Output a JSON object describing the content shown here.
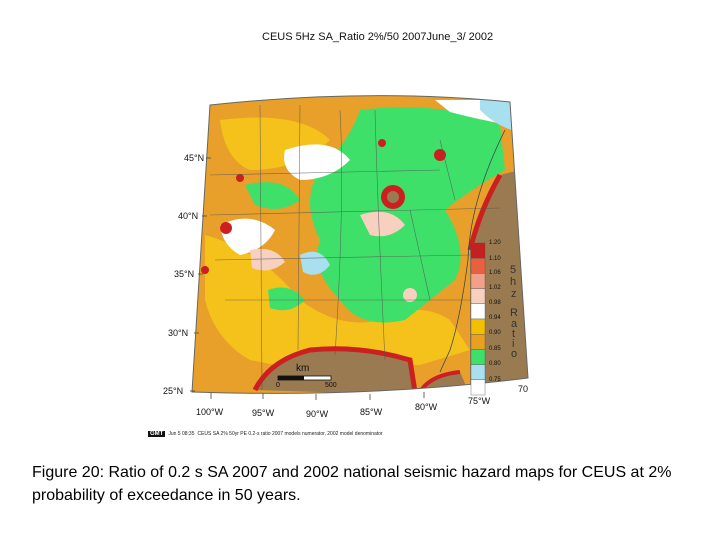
{
  "title": "CEUS 5Hz SA_Ratio 2%/50 2007June_3/ 2002",
  "lat_labels": [
    "45°N",
    "40°N",
    "35°N",
    "30°N",
    "25°N"
  ],
  "lon_labels": [
    "100°W",
    "95°W",
    "90°W",
    "85°W",
    "80°W",
    "75°W",
    "70"
  ],
  "colorbar": {
    "labels": [
      "1.20",
      "1.10",
      "1.06",
      "1.02",
      "0.98",
      "0.94",
      "0.90",
      "0.85",
      "0.80",
      "0.75"
    ],
    "colors": [
      "#c42020",
      "#e86040",
      "#f2a08a",
      "#f8d0c0",
      "#ffffff",
      "#f3c000",
      "#e8a020",
      "#3ee06a",
      "#a8e0f0",
      "#ffffff"
    ],
    "unit_letters": [
      "5",
      "h",
      "z",
      "R",
      "a",
      "t",
      "i",
      "o"
    ]
  },
  "scale_bar": {
    "unit": "km",
    "start": "0",
    "end": "500"
  },
  "footer": {
    "logo": "GMT",
    "date": "Jun 5 08:35",
    "note": "CEUS SA 2% 50yr PE 0.2-s ratio 2007 models numerator, 2002 model denominator"
  },
  "caption": "Figure 20: Ratio of 0.2 s SA 2007 and 2002 national seismic hazard maps for CEUS at 2% probability of exceedance in 50 years.",
  "colors": {
    "orange": "#e8a02a",
    "yellow": "#f4c21a",
    "green": "#3ee06a",
    "red": "#cc2020",
    "ocean": "#9a7a50",
    "light_blue": "#a8e0f0"
  }
}
